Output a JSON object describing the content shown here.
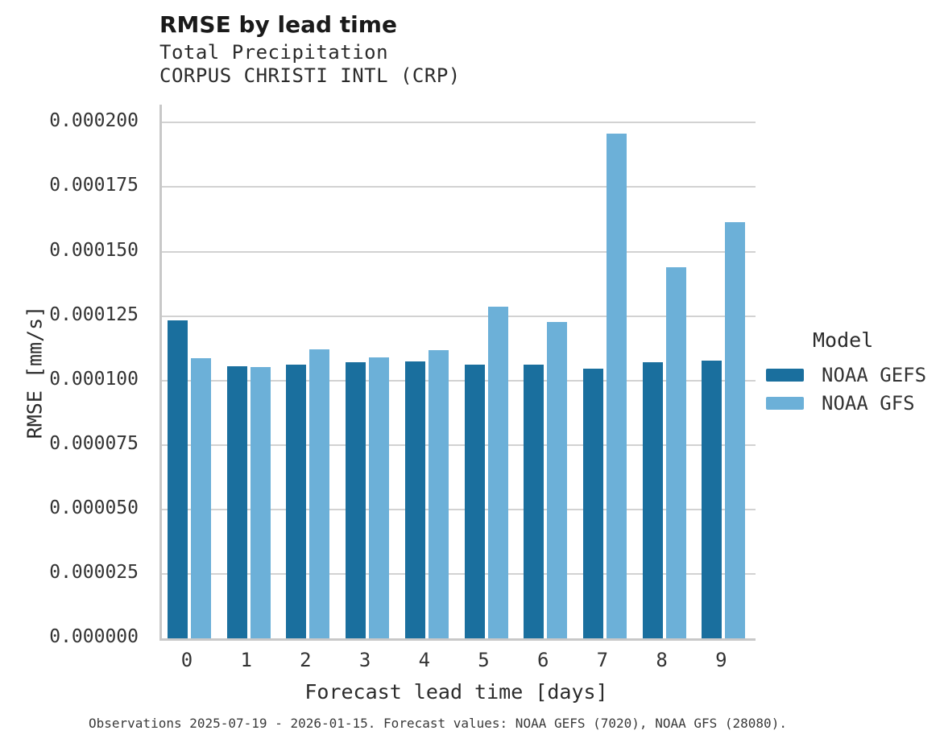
{
  "chart_data": {
    "type": "bar",
    "title": "RMSE by lead time",
    "subtitle_lines": [
      "Total Precipitation",
      "CORPUS CHRISTI INTL (CRP)"
    ],
    "xlabel": "Forecast lead time [days]",
    "ylabel": "RMSE [mm/s]",
    "categories": [
      "0",
      "1",
      "2",
      "3",
      "4",
      "5",
      "6",
      "7",
      "8",
      "9"
    ],
    "series": [
      {
        "name": "NOAA GEFS",
        "color": "#1a6f9e",
        "values": [
          0.0001232,
          0.0001055,
          0.000106,
          0.0001071,
          0.0001075,
          0.000106,
          0.000106,
          0.0001046,
          0.0001071,
          0.0001077
        ]
      },
      {
        "name": "NOAA GFS",
        "color": "#6cb0d8",
        "values": [
          0.0001088,
          0.0001051,
          0.000112,
          0.0001089,
          0.0001119,
          0.0001285,
          0.0001228,
          0.0001958,
          0.0001438,
          0.0001615
        ]
      }
    ],
    "ylim": [
      0,
      0.000207
    ],
    "grid": true,
    "legend_position": "right",
    "legend_title": "Model",
    "yticks": [
      {
        "label": "0.000000",
        "value": 0.0
      },
      {
        "label": "0.000025",
        "value": 2.5e-05
      },
      {
        "label": "0.000050",
        "value": 5e-05
      },
      {
        "label": "0.000075",
        "value": 7.5e-05
      },
      {
        "label": "0.000100",
        "value": 0.0001
      },
      {
        "label": "0.000125",
        "value": 0.000125
      },
      {
        "label": "0.000150",
        "value": 0.00015
      },
      {
        "label": "0.000175",
        "value": 0.000175
      },
      {
        "label": "0.000200",
        "value": 0.0002
      }
    ],
    "caption": "Observations 2025-07-19 - 2026-01-15. Forecast values: NOAA GEFS (7020), NOAA GFS (28080)."
  }
}
